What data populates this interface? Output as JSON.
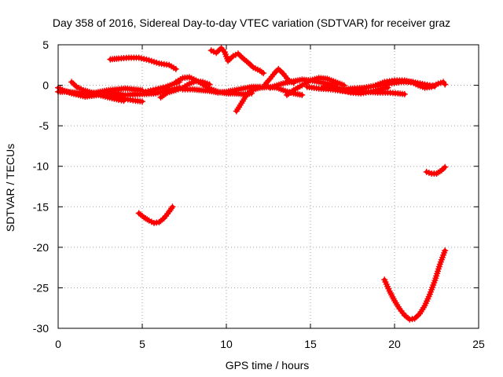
{
  "chart_data": {
    "type": "scatter",
    "title": "Day 358 of 2016, Sidereal Day-to-day VTEC variation (SDTVAR) for receiver graz",
    "xlabel": "GPS time / hours",
    "ylabel": "SDTVAR / TECUs",
    "xlim": [
      0,
      25
    ],
    "ylim": [
      -30,
      5
    ],
    "xticks": [
      0,
      5,
      10,
      15,
      20,
      25
    ],
    "yticks": [
      5,
      0,
      -5,
      -10,
      -15,
      -20,
      -25,
      -30
    ],
    "grid": true,
    "legend": "none",
    "series_color": "#ff0000",
    "series": [
      {
        "name": "s1",
        "points": [
          [
            0.0,
            -0.3
          ],
          [
            0.4,
            -0.7
          ],
          [
            0.8,
            -1.0
          ],
          [
            1.2,
            -1.2
          ],
          [
            1.6,
            -1.4
          ],
          [
            2.0,
            -1.3
          ],
          [
            2.4,
            -1.2
          ],
          [
            2.8,
            -1.4
          ],
          [
            3.2,
            -1.6
          ],
          [
            3.6,
            -1.8
          ],
          [
            3.9,
            -1.9
          ]
        ]
      },
      {
        "name": "s2",
        "points": [
          [
            0.0,
            -0.8
          ],
          [
            0.5,
            -0.8
          ],
          [
            1.0,
            -0.9
          ],
          [
            1.5,
            -1.0
          ],
          [
            2.0,
            -1.0
          ],
          [
            2.5,
            -0.8
          ],
          [
            3.0,
            -0.6
          ],
          [
            3.5,
            -0.5
          ],
          [
            4.0,
            -0.4
          ],
          [
            4.5,
            -0.5
          ],
          [
            5.0,
            -0.6
          ]
        ]
      },
      {
        "name": "s3",
        "points": [
          [
            0.8,
            0.4
          ],
          [
            1.1,
            -0.2
          ],
          [
            1.5,
            -0.6
          ],
          [
            2.0,
            -0.9
          ],
          [
            2.5,
            -1.0
          ],
          [
            3.0,
            -1.2
          ],
          [
            3.5,
            -1.5
          ],
          [
            4.0,
            -1.7
          ],
          [
            4.6,
            -1.9
          ],
          [
            5.0,
            -2.0
          ]
        ]
      },
      {
        "name": "s4",
        "points": [
          [
            2.0,
            -1.1
          ],
          [
            3.0,
            -0.9
          ],
          [
            4.0,
            -1.2
          ],
          [
            5.0,
            -1.1
          ],
          [
            5.8,
            -1.0
          ],
          [
            6.6,
            -0.6
          ],
          [
            7.2,
            -0.3
          ]
        ]
      },
      {
        "name": "s5",
        "points": [
          [
            3.1,
            3.2
          ],
          [
            3.6,
            3.3
          ],
          [
            4.2,
            3.4
          ],
          [
            4.8,
            3.4
          ],
          [
            5.4,
            3.1
          ],
          [
            6.0,
            2.7
          ],
          [
            6.6,
            2.5
          ],
          [
            7.0,
            2.0
          ]
        ]
      },
      {
        "name": "s6",
        "points": [
          [
            5.2,
            -0.8
          ],
          [
            5.8,
            -0.5
          ],
          [
            6.4,
            -0.2
          ],
          [
            6.9,
            0.2
          ],
          [
            7.2,
            0.4
          ]
        ]
      },
      {
        "name": "s7",
        "points": [
          [
            6.1,
            -1.5
          ],
          [
            6.5,
            -0.9
          ],
          [
            7.0,
            -0.6
          ],
          [
            7.4,
            -0.3
          ],
          [
            7.8,
            0.2
          ],
          [
            8.2,
            0.5
          ],
          [
            8.6,
            0.4
          ],
          [
            9.0,
            0.1
          ]
        ]
      },
      {
        "name": "s8",
        "points": [
          [
            7.0,
            0.4
          ],
          [
            7.4,
            0.9
          ],
          [
            7.8,
            1.0
          ],
          [
            8.2,
            0.6
          ],
          [
            8.6,
            0.1
          ],
          [
            9.0,
            -0.4
          ],
          [
            9.5,
            -0.8
          ],
          [
            10.0,
            -1.0
          ],
          [
            10.5,
            -1.0
          ],
          [
            11.0,
            -1.1
          ],
          [
            11.5,
            -1.0
          ]
        ]
      },
      {
        "name": "s9",
        "points": [
          [
            7.4,
            -0.5
          ],
          [
            8.0,
            -0.5
          ],
          [
            8.5,
            -0.6
          ],
          [
            9.0,
            -0.7
          ],
          [
            9.5,
            -0.9
          ],
          [
            10.0,
            -0.8
          ],
          [
            10.5,
            -0.6
          ],
          [
            11.0,
            -0.4
          ],
          [
            11.5,
            -0.2
          ],
          [
            12.0,
            -0.2
          ]
        ]
      },
      {
        "name": "s10",
        "points": [
          [
            9.1,
            4.3
          ],
          [
            9.4,
            4.0
          ],
          [
            9.7,
            4.6
          ],
          [
            9.9,
            4.1
          ],
          [
            10.1,
            3.0
          ],
          [
            10.4,
            3.6
          ],
          [
            10.7,
            3.9
          ],
          [
            11.0,
            3.3
          ],
          [
            11.3,
            2.8
          ],
          [
            11.6,
            2.2
          ],
          [
            12.0,
            1.8
          ],
          [
            12.2,
            1.5
          ]
        ]
      },
      {
        "name": "s11",
        "points": [
          [
            10.6,
            -3.2
          ],
          [
            10.9,
            -2.2
          ],
          [
            11.2,
            -1.2
          ],
          [
            11.5,
            -0.6
          ],
          [
            12.0,
            -0.3
          ],
          [
            12.5,
            -0.2
          ],
          [
            13.0,
            -0.3
          ],
          [
            13.5,
            -0.7
          ],
          [
            14.0,
            -1.0
          ],
          [
            14.5,
            -1.2
          ]
        ]
      },
      {
        "name": "s12",
        "points": [
          [
            12.3,
            0.1
          ],
          [
            12.6,
            0.8
          ],
          [
            12.9,
            1.6
          ],
          [
            13.1,
            2.0
          ],
          [
            13.4,
            1.4
          ],
          [
            13.7,
            0.6
          ],
          [
            14.0,
            0.3
          ]
        ]
      },
      {
        "name": "s13",
        "points": [
          [
            12.6,
            -0.3
          ],
          [
            13.0,
            0.0
          ],
          [
            13.5,
            0.3
          ],
          [
            14.0,
            0.5
          ],
          [
            14.5,
            0.7
          ],
          [
            15.0,
            0.6
          ],
          [
            15.5,
            0.4
          ],
          [
            16.0,
            0.2
          ],
          [
            16.5,
            0.0
          ]
        ]
      },
      {
        "name": "s14",
        "points": [
          [
            13.6,
            -1.2
          ],
          [
            14.0,
            -0.6
          ],
          [
            14.5,
            0.0
          ],
          [
            15.0,
            0.6
          ],
          [
            15.5,
            0.9
          ],
          [
            16.0,
            0.8
          ],
          [
            16.5,
            0.4
          ],
          [
            17.0,
            0.0
          ]
        ]
      },
      {
        "name": "s15",
        "points": [
          [
            14.8,
            -0.2
          ],
          [
            15.5,
            -0.4
          ],
          [
            16.2,
            -0.5
          ],
          [
            16.9,
            -0.7
          ],
          [
            17.5,
            -0.8
          ],
          [
            18.3,
            -0.8
          ],
          [
            19.0,
            -0.9
          ],
          [
            19.6,
            -0.9
          ],
          [
            20.2,
            -1.0
          ],
          [
            20.6,
            -1.1
          ]
        ]
      },
      {
        "name": "s16",
        "points": [
          [
            15.8,
            -0.1
          ],
          [
            16.5,
            -0.3
          ],
          [
            17.0,
            -0.5
          ],
          [
            17.5,
            -0.4
          ],
          [
            18.2,
            -0.3
          ],
          [
            19.0,
            0.0
          ],
          [
            19.7,
            0.2
          ],
          [
            20.4,
            0.4
          ],
          [
            21.1,
            0.4
          ],
          [
            21.8,
            0.1
          ],
          [
            22.4,
            -0.1
          ]
        ]
      },
      {
        "name": "s17",
        "points": [
          [
            16.8,
            -0.6
          ],
          [
            17.4,
            -0.9
          ],
          [
            18.0,
            -1.0
          ],
          [
            18.6,
            -0.8
          ],
          [
            19.2,
            -0.5
          ],
          [
            19.6,
            -0.3
          ]
        ]
      },
      {
        "name": "s18",
        "points": [
          [
            18.9,
            0.0
          ],
          [
            19.4,
            0.4
          ],
          [
            20.0,
            0.6
          ],
          [
            20.6,
            0.6
          ],
          [
            21.0,
            0.4
          ],
          [
            21.4,
            0.0
          ],
          [
            21.8,
            -0.3
          ],
          [
            22.2,
            -0.2
          ],
          [
            22.6,
            0.2
          ],
          [
            22.9,
            0.4
          ],
          [
            23.0,
            0.1
          ]
        ]
      },
      {
        "name": "s19",
        "points": [
          [
            4.8,
            -15.8
          ],
          [
            5.1,
            -16.3
          ],
          [
            5.4,
            -16.7
          ],
          [
            5.7,
            -17.0
          ],
          [
            6.0,
            -16.9
          ],
          [
            6.3,
            -16.4
          ],
          [
            6.6,
            -15.6
          ],
          [
            6.8,
            -15.0
          ]
        ]
      },
      {
        "name": "s20",
        "points": [
          [
            19.4,
            -24.0
          ],
          [
            19.7,
            -25.4
          ],
          [
            20.0,
            -26.6
          ],
          [
            20.3,
            -27.6
          ],
          [
            20.6,
            -28.4
          ],
          [
            20.9,
            -28.9
          ],
          [
            21.2,
            -28.8
          ],
          [
            21.5,
            -28.2
          ],
          [
            21.8,
            -27.2
          ],
          [
            22.1,
            -25.8
          ],
          [
            22.4,
            -24.1
          ],
          [
            22.7,
            -22.1
          ],
          [
            23.0,
            -20.4
          ]
        ]
      },
      {
        "name": "s21",
        "points": [
          [
            21.9,
            -10.7
          ],
          [
            22.2,
            -10.9
          ],
          [
            22.5,
            -10.9
          ],
          [
            22.8,
            -10.5
          ],
          [
            23.0,
            -10.1
          ]
        ]
      }
    ]
  }
}
